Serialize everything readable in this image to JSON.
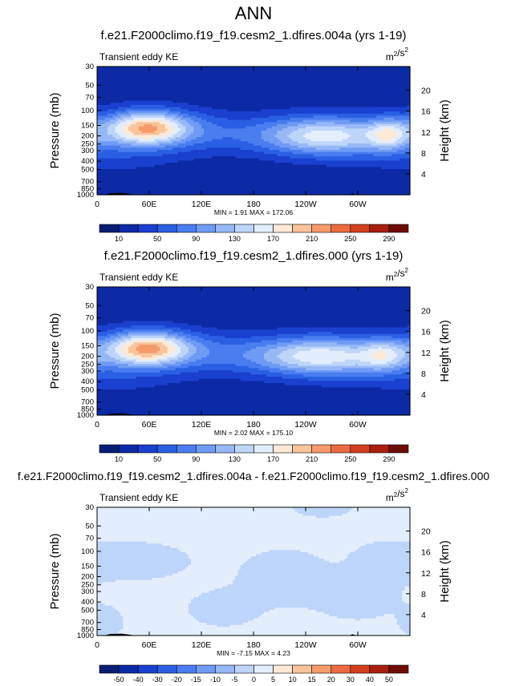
{
  "page_title": "ANN",
  "colors": {
    "abs_palette": [
      "#081d74",
      "#0c2aa5",
      "#1a40d0",
      "#2b5fe3",
      "#4a7df0",
      "#6f9bf4",
      "#97b8f7",
      "#bed5fa",
      "#e3eefc",
      "#fde9d6",
      "#f9c49b",
      "#f59b6b",
      "#ea6b3f",
      "#d3401f",
      "#a81f10",
      "#6e0d06"
    ],
    "diff_palette": [
      "#081d74",
      "#0c2aa5",
      "#1a40d0",
      "#2b5fe3",
      "#4a7df0",
      "#6f9bf4",
      "#97b8f7",
      "#bed5fa",
      "#e3eefc",
      "#fde9d6",
      "#f9c49b",
      "#f59b6b",
      "#ea6b3f",
      "#d3401f",
      "#a81f10",
      "#6e0d06"
    ],
    "topography": "#000000"
  },
  "chart_data": [
    {
      "type": "heatmap",
      "title": "f.e21.F2000climo.f19_f19.cesm2_1.dfires.004a (yrs 1-19)",
      "subtitle_left": "Transient eddy KE",
      "units": "m²/s²",
      "ylabel": "Pressure (mb)",
      "ylabel_right": "Height (km)",
      "x_ticks": [
        "0",
        "60E",
        "120E",
        "180",
        "120W",
        "60W"
      ],
      "x_tick_values": [
        0,
        60,
        120,
        180,
        240,
        300
      ],
      "xlim": [
        0,
        360
      ],
      "y_ticks": [
        "30",
        "50",
        "70",
        "100",
        "150",
        "200",
        "250",
        "300",
        "400",
        "500",
        "700",
        "850",
        "1000"
      ],
      "y_tick_values": [
        30,
        50,
        70,
        100,
        150,
        200,
        250,
        300,
        400,
        500,
        700,
        850,
        1000
      ],
      "ylim": [
        30,
        1000
      ],
      "yscale": "log",
      "height_ticks": [
        "20",
        "16",
        "12",
        "8",
        "4"
      ],
      "height_tick_values": [
        20,
        16,
        12,
        8,
        4
      ],
      "min_label": "MIN = ",
      "min_value": "1.91",
      "max_label": "MAX = ",
      "max_value": "172.06",
      "colorbar_labels": [
        "10",
        "50",
        "90",
        "130",
        "170",
        "210",
        "250",
        "290"
      ],
      "colorbar_levels": [
        10,
        30,
        50,
        70,
        90,
        110,
        130,
        150,
        170,
        190,
        210,
        230,
        250,
        270,
        290
      ],
      "palette": "abs",
      "field": {
        "base": 13,
        "jets": [
          {
            "lon": 58,
            "p": 160,
            "peak": 172,
            "sx": 34,
            "sy": 0.33
          },
          {
            "lon": 260,
            "p": 200,
            "peak": 145,
            "sx": 55,
            "sy": 0.38
          },
          {
            "lon": 335,
            "p": 190,
            "peak": 85,
            "sx": 16,
            "sy": 0.3
          },
          {
            "lon": 128,
            "p": 180,
            "peak": 38,
            "sx": 45,
            "sy": 0.4
          },
          {
            "lon": 20,
            "p": 250,
            "peak": 35,
            "sx": 60,
            "sy": 0.55
          }
        ]
      }
    },
    {
      "type": "heatmap",
      "title": "f.e21.F2000climo.f19_f19.cesm2_1.dfires.000 (yrs 1-19)",
      "subtitle_left": "Transient eddy KE",
      "units": "m²/s²",
      "ylabel": "Pressure (mb)",
      "ylabel_right": "Height (km)",
      "x_ticks": [
        "0",
        "60E",
        "120E",
        "180",
        "120W",
        "60W"
      ],
      "x_tick_values": [
        0,
        60,
        120,
        180,
        240,
        300
      ],
      "xlim": [
        0,
        360
      ],
      "y_ticks": [
        "30",
        "50",
        "70",
        "100",
        "150",
        "200",
        "250",
        "300",
        "400",
        "500",
        "700",
        "850",
        "1000"
      ],
      "y_tick_values": [
        30,
        50,
        70,
        100,
        150,
        200,
        250,
        300,
        400,
        500,
        700,
        850,
        1000
      ],
      "ylim": [
        30,
        1000
      ],
      "yscale": "log",
      "height_ticks": [
        "20",
        "16",
        "12",
        "8",
        "4"
      ],
      "height_tick_values": [
        20,
        16,
        12,
        8,
        4
      ],
      "min_label": "MIN = ",
      "min_value": "2.02",
      "max_label": "MAX = ",
      "max_value": "175.10",
      "colorbar_labels": [
        "10",
        "50",
        "90",
        "130",
        "170",
        "210",
        "250",
        "290"
      ],
      "colorbar_levels": [
        10,
        30,
        50,
        70,
        90,
        110,
        130,
        150,
        170,
        190,
        210,
        230,
        250,
        270,
        290
      ],
      "palette": "abs",
      "field": {
        "base": 13,
        "jets": [
          {
            "lon": 58,
            "p": 160,
            "peak": 175,
            "sx": 34,
            "sy": 0.33
          },
          {
            "lon": 255,
            "p": 200,
            "peak": 150,
            "sx": 58,
            "sy": 0.38
          },
          {
            "lon": 330,
            "p": 190,
            "peak": 70,
            "sx": 18,
            "sy": 0.3
          },
          {
            "lon": 128,
            "p": 180,
            "peak": 40,
            "sx": 45,
            "sy": 0.4
          },
          {
            "lon": 20,
            "p": 250,
            "peak": 35,
            "sx": 60,
            "sy": 0.55
          }
        ]
      }
    },
    {
      "type": "heatmap",
      "title": "f.e21.F2000climo.f19_f19.cesm2_1.dfires.004a - f.e21.F2000climo.f19_f19.cesm2_1.dfires.000",
      "subtitle_left": "Transient eddy KE",
      "units": "m²/s²",
      "ylabel": "Pressure (mb)",
      "ylabel_right": "Height (km)",
      "x_ticks": [
        "0",
        "60E",
        "120E",
        "180",
        "120W",
        "60W"
      ],
      "x_tick_values": [
        0,
        60,
        120,
        180,
        240,
        300
      ],
      "xlim": [
        0,
        360
      ],
      "y_ticks": [
        "30",
        "50",
        "70",
        "100",
        "150",
        "200",
        "250",
        "300",
        "400",
        "500",
        "700",
        "850",
        "1000"
      ],
      "y_tick_values": [
        30,
        50,
        70,
        100,
        150,
        200,
        250,
        300,
        400,
        500,
        700,
        850,
        1000
      ],
      "ylim": [
        30,
        1000
      ],
      "yscale": "log",
      "height_ticks": [
        "20",
        "16",
        "12",
        "8",
        "4"
      ],
      "height_tick_values": [
        20,
        16,
        12,
        8,
        4
      ],
      "min_label": "MIN = ",
      "min_value": "-7.15",
      "max_label": "MAX = ",
      "max_value": "4.23",
      "colorbar_labels": [
        "-50",
        "-40",
        "-30",
        "-20",
        "-15",
        "-10",
        "-5",
        "0",
        "5",
        "10",
        "15",
        "20",
        "30",
        "40",
        "50"
      ],
      "colorbar_levels": [
        -50,
        -40,
        -30,
        -20,
        -15,
        -10,
        -5,
        0,
        5,
        10,
        15,
        20,
        30,
        40,
        50
      ],
      "palette": "diff",
      "field": {
        "base": 1,
        "jets": [
          {
            "lon": 40,
            "p": 130,
            "peak": -3,
            "sx": 45,
            "sy": 0.35
          },
          {
            "lon": 215,
            "p": 200,
            "peak": -3,
            "sx": 35,
            "sy": 0.5
          },
          {
            "lon": 145,
            "p": 480,
            "peak": -2.5,
            "sx": 30,
            "sy": 0.35
          },
          {
            "lon": 300,
            "p": 350,
            "peak": -2.5,
            "sx": 35,
            "sy": 0.45
          },
          {
            "lon": 330,
            "p": 130,
            "peak": -2.5,
            "sx": 25,
            "sy": 0.35
          },
          {
            "lon": 10,
            "p": 700,
            "peak": -2.5,
            "sx": 15,
            "sy": 0.3
          },
          {
            "lon": 260,
            "p": 30,
            "peak": -2.5,
            "sx": 25,
            "sy": 0.2
          }
        ]
      }
    }
  ]
}
